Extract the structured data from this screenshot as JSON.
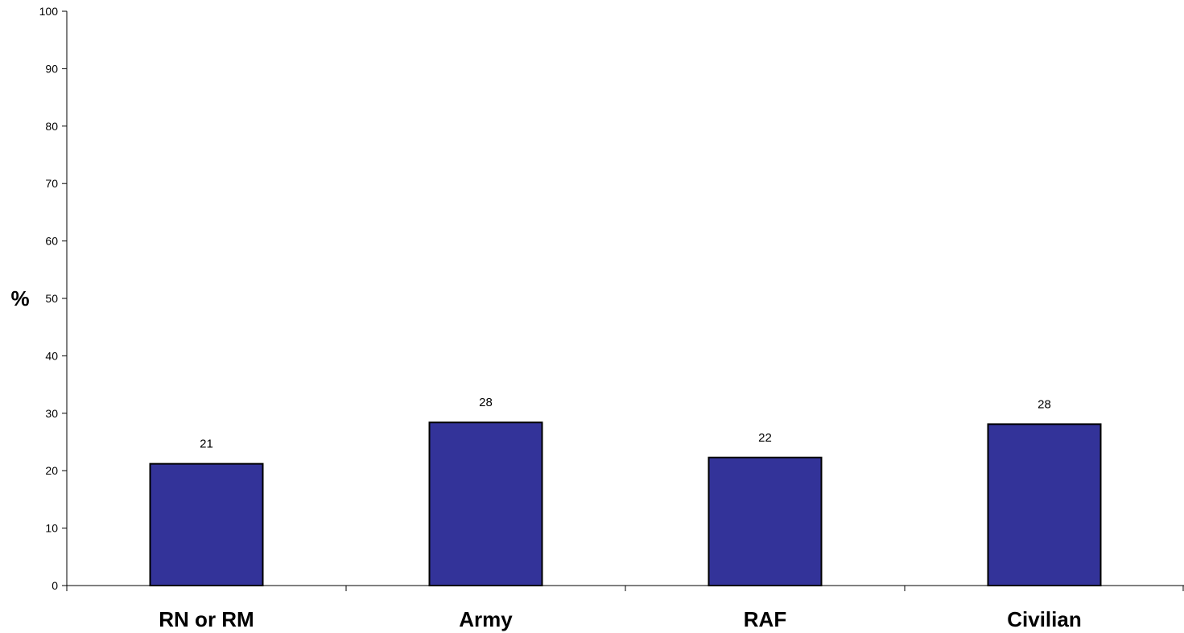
{
  "chart_data": {
    "type": "bar",
    "title": "",
    "xlabel": "",
    "ylabel": "%",
    "ylim": [
      0,
      100
    ],
    "yticks": [
      0,
      10,
      20,
      30,
      40,
      50,
      60,
      70,
      80,
      90,
      100
    ],
    "categories": [
      "RN or RM",
      "Army",
      "RAF",
      "Civilian"
    ],
    "values": [
      21.2,
      28.4,
      22.3,
      28.1
    ],
    "data_labels": [
      "21",
      "28",
      "22",
      "28"
    ],
    "grid": false,
    "legend": "none",
    "bar_color": "#333399",
    "bar_edge_color": "#000000"
  }
}
